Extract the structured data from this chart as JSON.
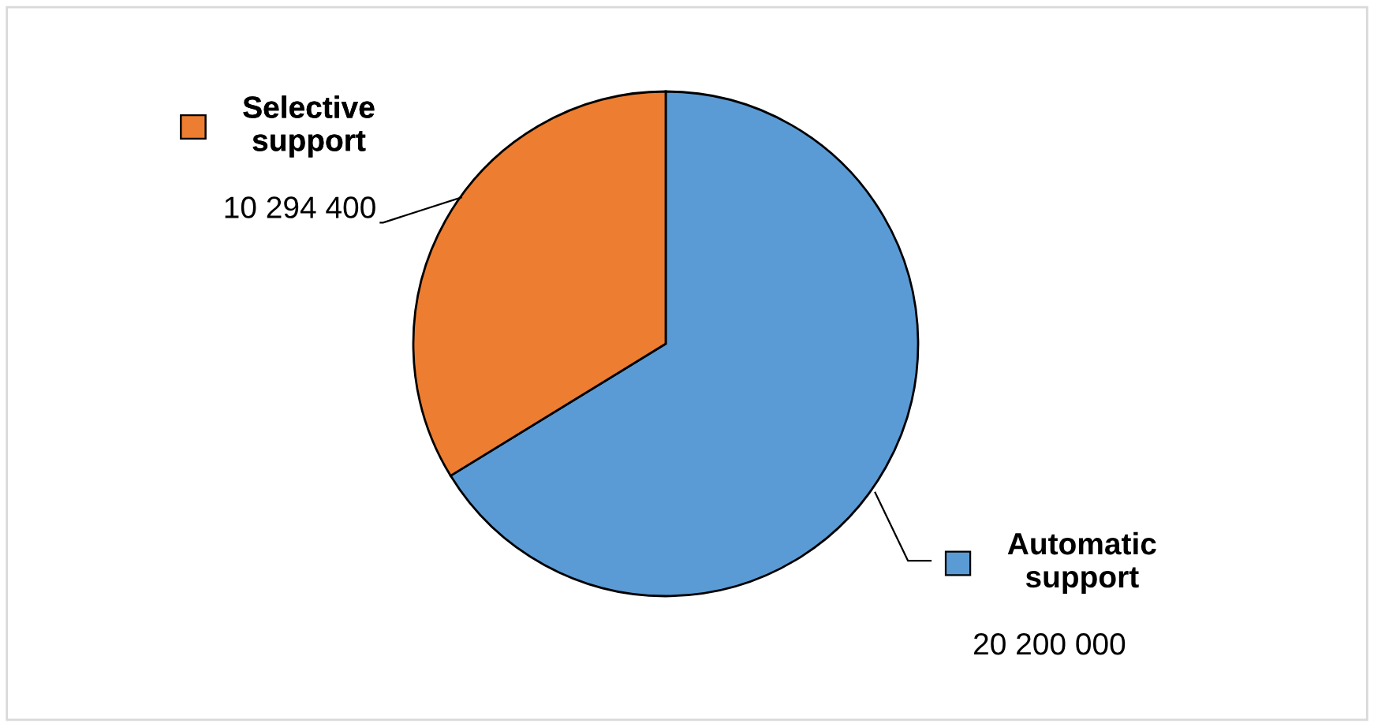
{
  "chart_data": {
    "type": "pie",
    "categories": [
      "Automatic support",
      "Selective support"
    ],
    "values": [
      20200000,
      10294400
    ],
    "value_labels": [
      "20 200 000",
      "10 294 400"
    ],
    "colors": [
      "#5b9bd5",
      "#ed7d31"
    ],
    "legend": "bottom left"
  }
}
